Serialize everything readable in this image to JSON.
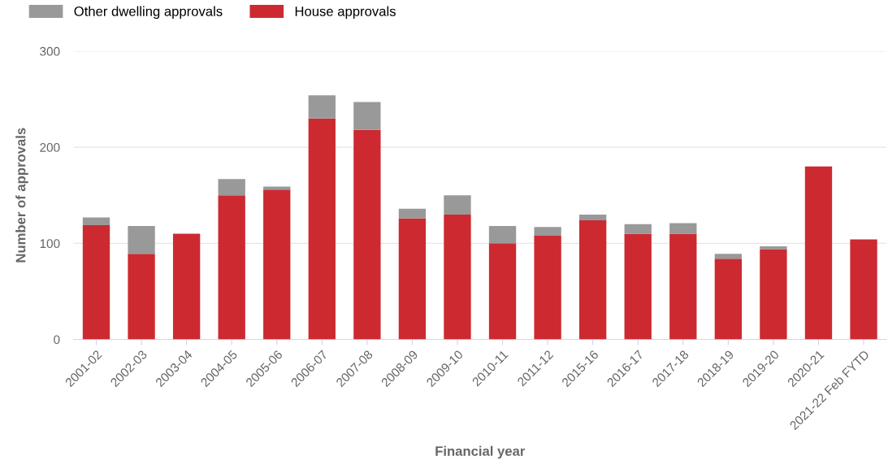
{
  "chart_data": {
    "type": "bar",
    "stacked": true,
    "xlabel": "Financial year",
    "ylabel": "Number of approvals",
    "categories": [
      "2001-02",
      "2002-03",
      "2003-04",
      "2004-05",
      "2005-06",
      "2006-07",
      "2007-08",
      "2008-09",
      "2009-10",
      "2010-11",
      "2011-12",
      "2015-16",
      "2016-17",
      "2017-18",
      "2018-19",
      "2019-20",
      "2020-21",
      "2021-22 Feb FYTD"
    ],
    "series": [
      {
        "name": "House approvals",
        "color": "#cc2a30",
        "values": [
          119,
          89,
          110,
          150,
          156,
          230,
          218,
          126,
          130,
          100,
          108,
          124,
          110,
          110,
          84,
          94,
          180,
          104
        ]
      },
      {
        "name": "Other dwelling approvals",
        "color": "#999999",
        "values": [
          8,
          29,
          0,
          17,
          3,
          24,
          29,
          10,
          20,
          18,
          9,
          6,
          10,
          11,
          5,
          3,
          0,
          0
        ]
      }
    ],
    "ylim": [
      0,
      300
    ],
    "yticks": [
      0,
      100,
      200,
      300
    ],
    "grid": "y",
    "legend": "top left"
  }
}
